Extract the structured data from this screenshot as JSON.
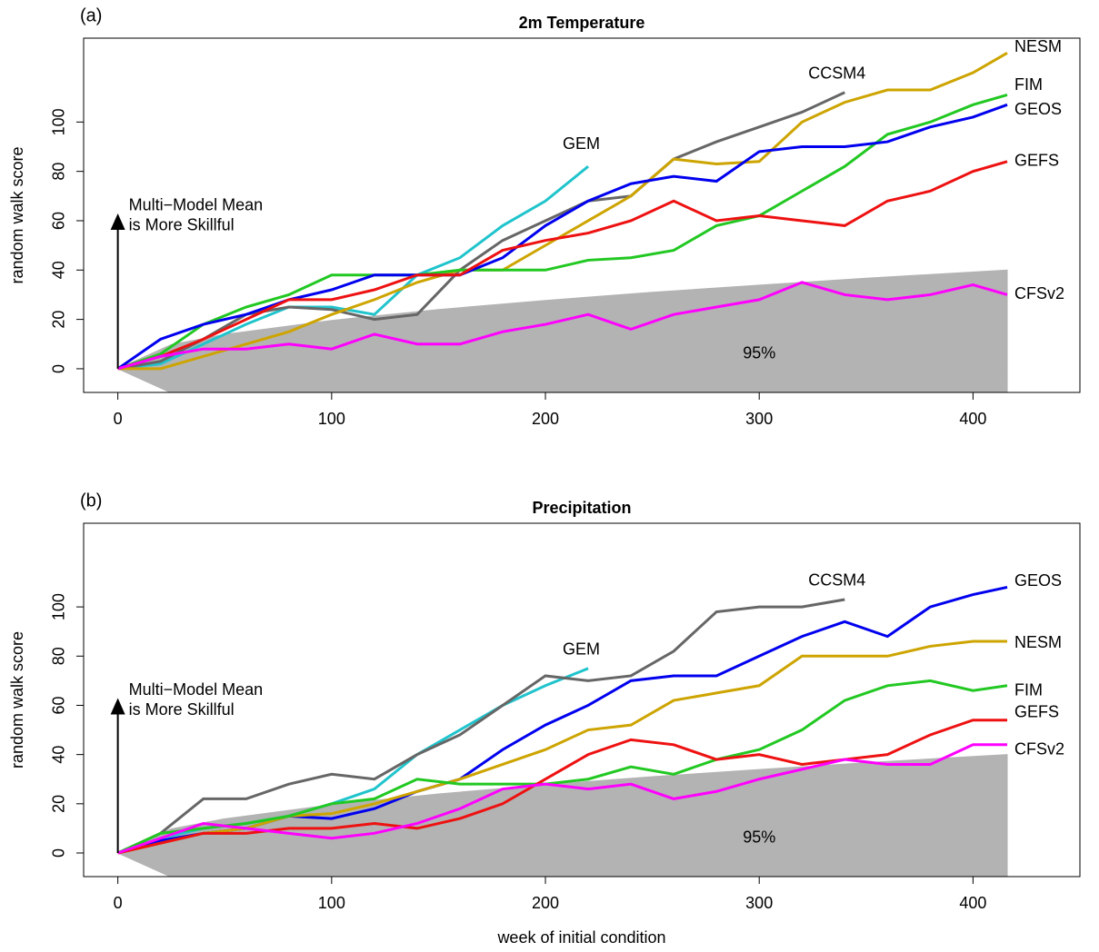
{
  "chart_data": [
    {
      "type": "line",
      "panel_label": "(a)",
      "title": "2m Temperature",
      "y_label": "random walk score",
      "annotation": [
        "Multi−Model Mean",
        "is More Skillful"
      ],
      "x": [
        0,
        20,
        40,
        60,
        80,
        100,
        120,
        140,
        160,
        180,
        200,
        220,
        240,
        260,
        280,
        300,
        320,
        340,
        360,
        380,
        400,
        416
      ],
      "series": [
        {
          "name": "GEM",
          "color": "#20c4cc",
          "values": [
            0,
            2,
            10,
            18,
            25,
            25,
            22,
            38,
            45,
            58,
            68,
            82,
            null,
            null,
            null,
            null,
            null,
            null,
            null,
            null,
            null,
            null
          ]
        },
        {
          "name": "CCSM4",
          "color": "#666666",
          "values": [
            0,
            3,
            12,
            22,
            25,
            24,
            20,
            22,
            40,
            52,
            60,
            68,
            70,
            85,
            92,
            98,
            104,
            112,
            null,
            null,
            null,
            null
          ]
        },
        {
          "name": "NESM",
          "color": "#cda400",
          "values": [
            0,
            0,
            5,
            10,
            15,
            22,
            28,
            35,
            40,
            40,
            50,
            60,
            70,
            85,
            83,
            84,
            100,
            108,
            113,
            113,
            120,
            128
          ]
        },
        {
          "name": "FIM",
          "color": "#22c822",
          "values": [
            0,
            6,
            18,
            25,
            30,
            38,
            38,
            38,
            40,
            40,
            40,
            44,
            45,
            48,
            58,
            62,
            72,
            82,
            95,
            100,
            107,
            111
          ]
        },
        {
          "name": "GEOS",
          "color": "#0000ee",
          "values": [
            0,
            12,
            18,
            22,
            28,
            32,
            38,
            38,
            38,
            45,
            58,
            68,
            75,
            78,
            76,
            88,
            90,
            90,
            92,
            98,
            102,
            107
          ]
        },
        {
          "name": "GEFS",
          "color": "#ee1111",
          "values": [
            0,
            5,
            12,
            20,
            28,
            28,
            32,
            38,
            38,
            48,
            52,
            55,
            60,
            68,
            60,
            62,
            60,
            58,
            68,
            72,
            80,
            84
          ]
        },
        {
          "name": "CFSv2",
          "color": "#ff00ff",
          "values": [
            0,
            5,
            8,
            8,
            10,
            8,
            14,
            10,
            10,
            15,
            18,
            22,
            16,
            22,
            25,
            28,
            35,
            30,
            28,
            30,
            34,
            30
          ]
        }
      ],
      "envelope": {
        "label": "95%",
        "color": "#b3b3b3",
        "x": [
          0,
          25,
          50,
          100,
          150,
          200,
          250,
          300,
          350,
          416
        ],
        "upper": [
          0,
          9.8,
          13.9,
          19.6,
          24,
          27.7,
          31,
          33.9,
          36.7,
          40
        ],
        "lower": [
          0,
          -9.8,
          -13.9,
          -19.6,
          -24,
          -27.7,
          -31,
          -33.9,
          -36.7,
          -40
        ]
      },
      "xlim": [
        -16,
        450
      ],
      "ylim": [
        -9.6,
        134
      ],
      "xticks": [
        0,
        100,
        200,
        300,
        400
      ],
      "yticks": [
        0,
        20,
        40,
        60,
        80,
        100
      ]
    },
    {
      "type": "line",
      "panel_label": "(b)",
      "title": "Precipitation",
      "y_label": "random walk score",
      "x_label": "week of initial condition",
      "annotation": [
        "Multi−Model Mean",
        "is More Skillful"
      ],
      "x": [
        0,
        20,
        40,
        60,
        80,
        100,
        120,
        140,
        160,
        180,
        200,
        220,
        240,
        260,
        280,
        300,
        320,
        340,
        360,
        380,
        400,
        416
      ],
      "series": [
        {
          "name": "GEM",
          "color": "#20c4cc",
          "values": [
            0,
            6,
            10,
            12,
            15,
            20,
            26,
            40,
            50,
            60,
            68,
            75,
            null,
            null,
            null,
            null,
            null,
            null,
            null,
            null,
            null,
            null
          ]
        },
        {
          "name": "CCSM4",
          "color": "#666666",
          "values": [
            0,
            8,
            22,
            22,
            28,
            32,
            30,
            40,
            48,
            60,
            72,
            70,
            72,
            82,
            98,
            100,
            100,
            103,
            null,
            null,
            null,
            null
          ]
        },
        {
          "name": "GEOS",
          "color": "#0000ee",
          "values": [
            0,
            5,
            8,
            10,
            15,
            14,
            18,
            25,
            30,
            42,
            52,
            60,
            70,
            72,
            72,
            80,
            88,
            94,
            88,
            100,
            105,
            108
          ]
        },
        {
          "name": "NESM",
          "color": "#cda400",
          "values": [
            0,
            4,
            8,
            10,
            15,
            16,
            20,
            25,
            30,
            36,
            42,
            50,
            52,
            62,
            65,
            68,
            80,
            80,
            80,
            84,
            86,
            86
          ]
        },
        {
          "name": "FIM",
          "color": "#22c822",
          "values": [
            0,
            8,
            10,
            12,
            15,
            20,
            22,
            30,
            28,
            28,
            28,
            30,
            35,
            32,
            38,
            42,
            50,
            62,
            68,
            70,
            66,
            68
          ]
        },
        {
          "name": "GEFS",
          "color": "#ee1111",
          "values": [
            0,
            4,
            8,
            8,
            10,
            10,
            12,
            10,
            14,
            20,
            30,
            40,
            46,
            44,
            38,
            40,
            36,
            38,
            40,
            48,
            54,
            54
          ]
        },
        {
          "name": "CFSv2",
          "color": "#ff00ff",
          "values": [
            0,
            6,
            12,
            10,
            8,
            6,
            8,
            12,
            18,
            26,
            28,
            26,
            28,
            22,
            25,
            30,
            34,
            38,
            36,
            36,
            44,
            44
          ]
        }
      ],
      "envelope": {
        "label": "95%",
        "color": "#b3b3b3",
        "x": [
          0,
          25,
          50,
          100,
          150,
          200,
          250,
          300,
          350,
          416
        ],
        "upper": [
          0,
          9.8,
          13.9,
          19.6,
          24,
          27.7,
          31,
          33.9,
          36.7,
          40
        ],
        "lower": [
          0,
          -9.8,
          -13.9,
          -19.6,
          -24,
          -27.7,
          -31,
          -33.9,
          -36.7,
          -40
        ]
      },
      "xlim": [
        -16,
        450
      ],
      "ylim": [
        -9.6,
        134
      ],
      "xticks": [
        0,
        100,
        200,
        300,
        400
      ],
      "yticks": [
        0,
        20,
        40,
        60,
        80,
        100
      ]
    }
  ]
}
